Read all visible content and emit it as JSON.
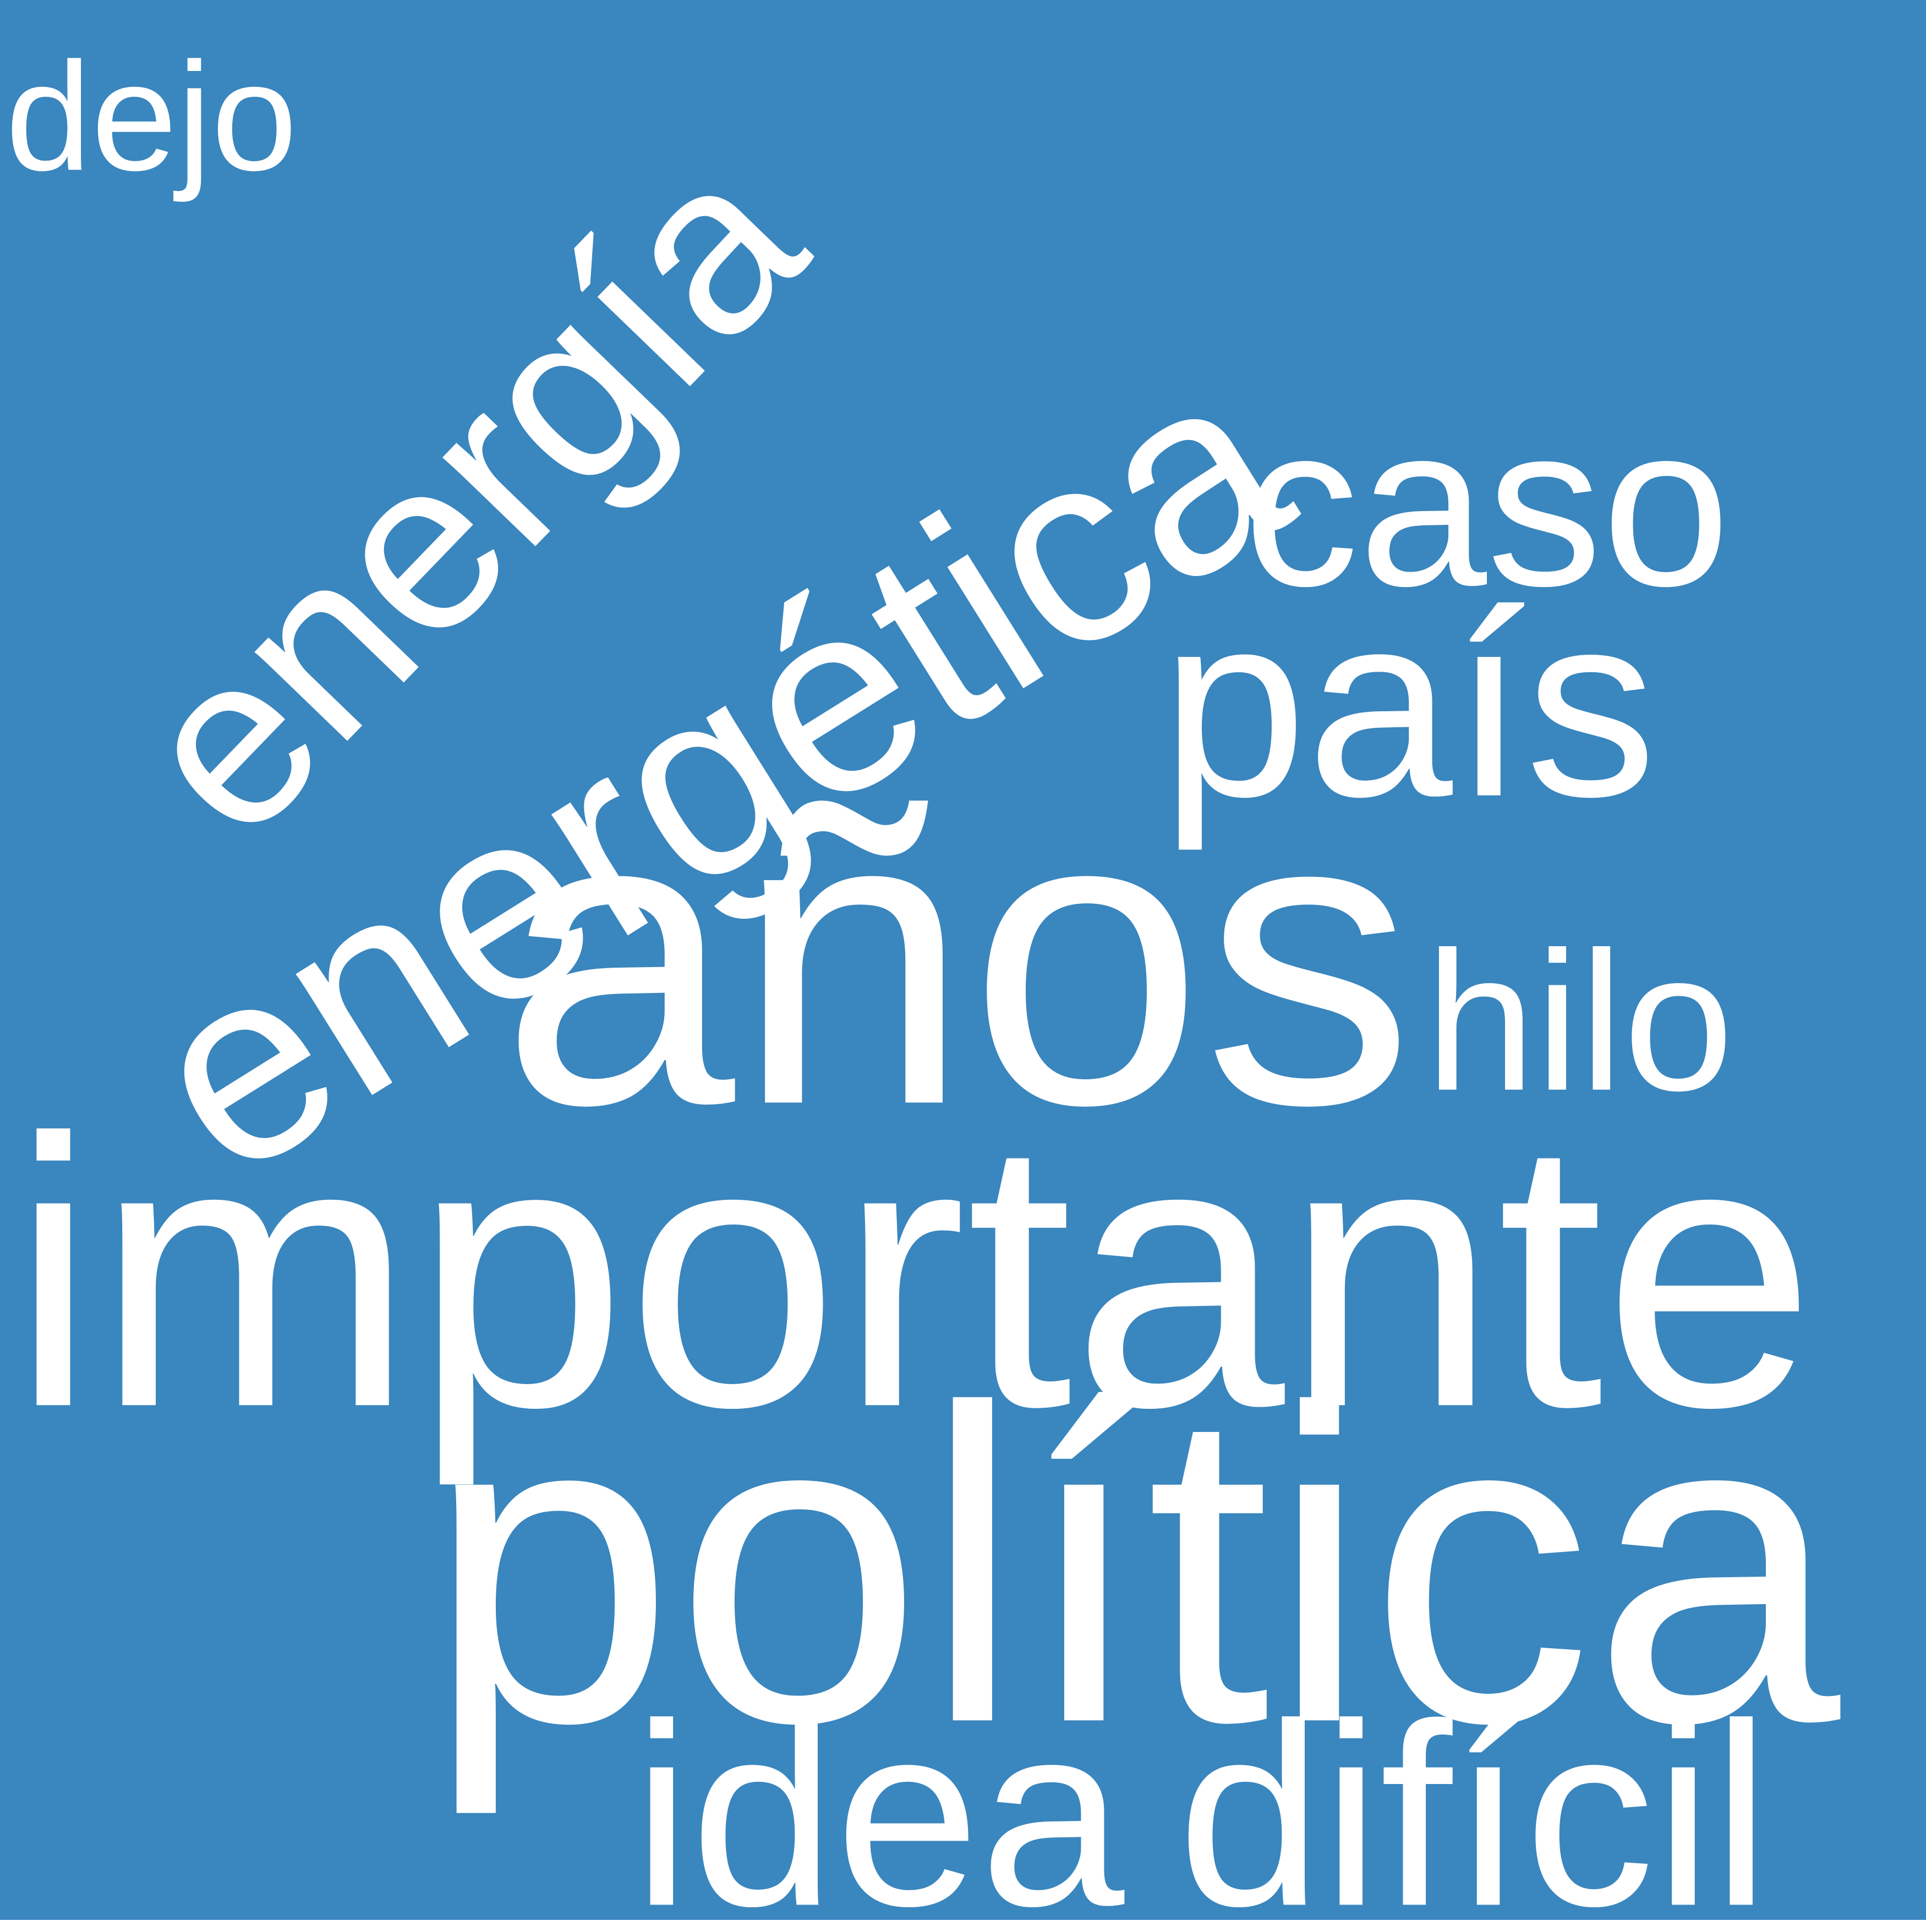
{
  "background_color": "#3A86BE",
  "text_color": "#FFFFFF",
  "words": [
    {
      "id": "dejo",
      "text": "dejo"
    },
    {
      "id": "energia",
      "text": "energía"
    },
    {
      "id": "energetica",
      "text": "energética"
    },
    {
      "id": "caso",
      "text": "caso"
    },
    {
      "id": "pais",
      "text": "país"
    },
    {
      "id": "anos",
      "text": "años"
    },
    {
      "id": "hilo",
      "text": "hilo"
    },
    {
      "id": "importante",
      "text": "importante"
    },
    {
      "id": "politica",
      "text": "política"
    },
    {
      "id": "idea",
      "text": "idea"
    },
    {
      "id": "dificil",
      "text": "difícil"
    }
  ]
}
